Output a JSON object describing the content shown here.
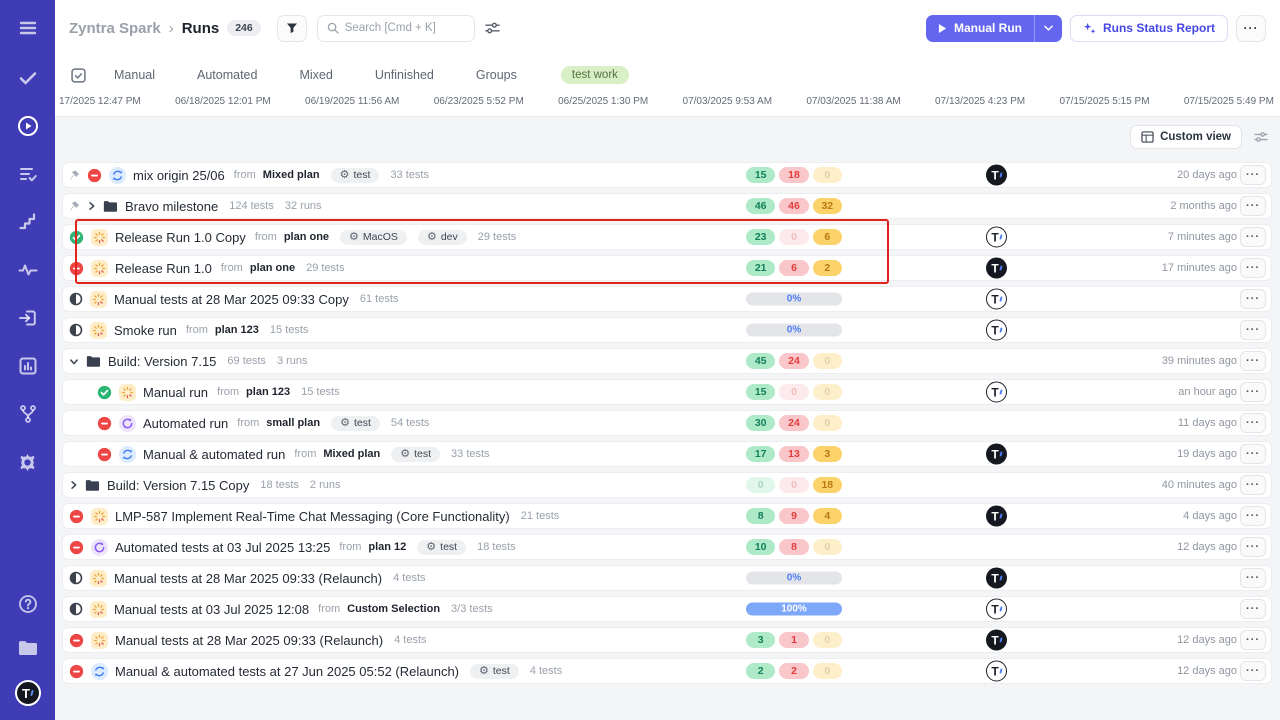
{
  "sidebar": {
    "icons": [
      "hamburger",
      "tests-check",
      "runs-play",
      "test-plans",
      "milestones-steps",
      "analytics-pulse",
      "import-arrow",
      "reports-chart",
      "branches",
      "settings-gear"
    ],
    "bottom_icons": [
      "help",
      "projects-folder"
    ],
    "logo_letter": "T"
  },
  "header": {
    "project": "Zyntra Spark",
    "separator": "›",
    "page": "Runs",
    "count": "246",
    "search_placeholder": "Search [Cmd + K]",
    "manual_run": "Manual Run",
    "report_button": "Runs Status Report",
    "more": "···"
  },
  "tabs": {
    "items": [
      "Manual",
      "Automated",
      "Mixed",
      "Unfinished",
      "Groups"
    ],
    "tag": "test work"
  },
  "timeline": {
    "dates": [
      "17/2025 12:47 PM",
      "06/18/2025 12:01 PM",
      "06/19/2025 11:56 AM",
      "06/23/2025 5:52 PM",
      "06/25/2025 1:30 PM",
      "07/03/2025 9:53 AM",
      "07/03/2025 11:38 AM",
      "07/13/2025 4:23 PM",
      "07/15/2025 5:15 PM",
      "07/15/2025 5:49 PM"
    ]
  },
  "toolbar": {
    "custom_view": "Custom view"
  },
  "misc": {
    "from_label": "from",
    "avatar_letter": "T",
    "gear": "⚙"
  },
  "rows": [
    {
      "pinned": true,
      "status": "stopped",
      "type": "mixed",
      "name": "mix origin 25/06",
      "from": "Mixed plan",
      "badges": [
        "test"
      ],
      "tests": "33 tests",
      "stats": {
        "pills": [
          {
            "v": "15",
            "c": "g"
          },
          {
            "v": "18",
            "c": "r"
          },
          {
            "v": "0",
            "c": "y",
            "f": true
          }
        ]
      },
      "avatar": "filled",
      "time": "20 days ago"
    },
    {
      "pinned": true,
      "chevron": "right",
      "type": "folder",
      "name": "Bravo milestone",
      "tests": "124 tests",
      "runs": "32 runs",
      "stats": {
        "pills": [
          {
            "v": "46",
            "c": "g"
          },
          {
            "v": "46",
            "c": "r"
          },
          {
            "v": "32",
            "c": "y"
          }
        ]
      },
      "time": "2 months ago"
    },
    {
      "status": "passed",
      "type": "manual",
      "name": "Release Run 1.0 Copy",
      "from": "plan one",
      "badges": [
        "MacOS",
        "dev"
      ],
      "tests": "29 tests",
      "stats": {
        "pills": [
          {
            "v": "23",
            "c": "g"
          },
          {
            "v": "0",
            "c": "r",
            "f": true
          },
          {
            "v": "6",
            "c": "y"
          }
        ]
      },
      "avatar": "outline",
      "time": "7 minutes ago"
    },
    {
      "status": "stopped",
      "type": "manual",
      "name": "Release Run 1.0",
      "from": "plan one",
      "tests": "29 tests",
      "stats": {
        "pills": [
          {
            "v": "21",
            "c": "g"
          },
          {
            "v": "6",
            "c": "r"
          },
          {
            "v": "2",
            "c": "y"
          }
        ]
      },
      "avatar": "filled",
      "time": "17 minutes ago"
    },
    {
      "status": "half",
      "type": "manual",
      "name": "Manual tests at 28 Mar 2025 09:33 Copy",
      "tests": "61 tests",
      "stats": {
        "bar": "0%"
      },
      "avatar": "outline"
    },
    {
      "status": "half",
      "type": "manual",
      "name": "Smoke run",
      "from": "plan 123",
      "tests": "15 tests",
      "stats": {
        "bar": "0%"
      },
      "avatar": "outline"
    },
    {
      "chevron": "down",
      "type": "folder",
      "name": "Build: Version 7.15",
      "tests": "69 tests",
      "runs": "3 runs",
      "stats": {
        "pills": [
          {
            "v": "45",
            "c": "g"
          },
          {
            "v": "24",
            "c": "r"
          },
          {
            "v": "0",
            "c": "y",
            "f": true
          }
        ]
      },
      "time": "39 minutes ago"
    },
    {
      "indent": true,
      "status": "passed",
      "type": "manual",
      "name": "Manual run",
      "from": "plan 123",
      "tests": "15 tests",
      "stats": {
        "pills": [
          {
            "v": "15",
            "c": "g"
          },
          {
            "v": "0",
            "c": "r",
            "f": true
          },
          {
            "v": "0",
            "c": "y",
            "f": true
          }
        ]
      },
      "avatar": "outline",
      "time": "an hour ago"
    },
    {
      "indent": true,
      "status": "stopped",
      "type": "automated",
      "name": "Automated run",
      "from": "small plan",
      "badges": [
        "test"
      ],
      "tests": "54 tests",
      "stats": {
        "pills": [
          {
            "v": "30",
            "c": "g"
          },
          {
            "v": "24",
            "c": "r"
          },
          {
            "v": "0",
            "c": "y",
            "f": true
          }
        ]
      },
      "time": "11 days ago"
    },
    {
      "indent": true,
      "status": "stopped",
      "type": "mixed",
      "name": "Manual & automated run",
      "from": "Mixed plan",
      "badges": [
        "test"
      ],
      "tests": "33 tests",
      "stats": {
        "pills": [
          {
            "v": "17",
            "c": "g"
          },
          {
            "v": "13",
            "c": "r"
          },
          {
            "v": "3",
            "c": "y"
          }
        ]
      },
      "avatar": "filled",
      "time": "19 days ago"
    },
    {
      "chevron": "right",
      "type": "folder",
      "name": "Build: Version 7.15 Copy",
      "tests": "18 tests",
      "runs": "2 runs",
      "stats": {
        "pills": [
          {
            "v": "0",
            "c": "g",
            "f": true
          },
          {
            "v": "0",
            "c": "r",
            "f": true
          },
          {
            "v": "18",
            "c": "y"
          }
        ]
      },
      "time": "40 minutes ago"
    },
    {
      "status": "stopped",
      "type": "manual",
      "name": "LMP-587 Implement Real-Time Chat Messaging (Core Functionality)",
      "tests": "21 tests",
      "stats": {
        "pills": [
          {
            "v": "8",
            "c": "g"
          },
          {
            "v": "9",
            "c": "r"
          },
          {
            "v": "4",
            "c": "y"
          }
        ]
      },
      "avatar": "filled",
      "time": "4 days ago"
    },
    {
      "status": "stopped",
      "type": "automated",
      "name": "Automated tests at 03 Jul 2025 13:25",
      "from": "plan 12",
      "badges": [
        "test"
      ],
      "tests": "18 tests",
      "stats": {
        "pills": [
          {
            "v": "10",
            "c": "g"
          },
          {
            "v": "8",
            "c": "r"
          },
          {
            "v": "0",
            "c": "y",
            "f": true
          }
        ]
      },
      "time": "12 days ago"
    },
    {
      "status": "half",
      "type": "manual",
      "name": "Manual tests at 28 Mar 2025 09:33 (Relaunch)",
      "tests": "4 tests",
      "stats": {
        "bar": "0%"
      },
      "avatar": "filled"
    },
    {
      "status": "half",
      "type": "manual",
      "name": "Manual tests at 03 Jul 2025 12:08",
      "from": "Custom Selection",
      "tests": "3/3 tests",
      "stats": {
        "bar": "100%",
        "full": true
      },
      "avatar": "outline"
    },
    {
      "status": "stopped",
      "type": "manual",
      "name": "Manual tests at 28 Mar 2025 09:33 (Relaunch)",
      "tests": "4 tests",
      "stats": {
        "pills": [
          {
            "v": "3",
            "c": "g"
          },
          {
            "v": "1",
            "c": "r"
          },
          {
            "v": "0",
            "c": "y",
            "f": true
          }
        ]
      },
      "avatar": "filled",
      "time": "12 days ago"
    },
    {
      "status": "stopped",
      "type": "mixed",
      "name": "Manual & automated tests at 27 Jun 2025 05:52 (Relaunch)",
      "badges": [
        "test"
      ],
      "tests": "4 tests",
      "stats": {
        "pills": [
          {
            "v": "2",
            "c": "g"
          },
          {
            "v": "2",
            "c": "r"
          },
          {
            "v": "0",
            "c": "y",
            "f": true
          }
        ]
      },
      "avatar": "outline",
      "time": "12 days ago"
    }
  ]
}
